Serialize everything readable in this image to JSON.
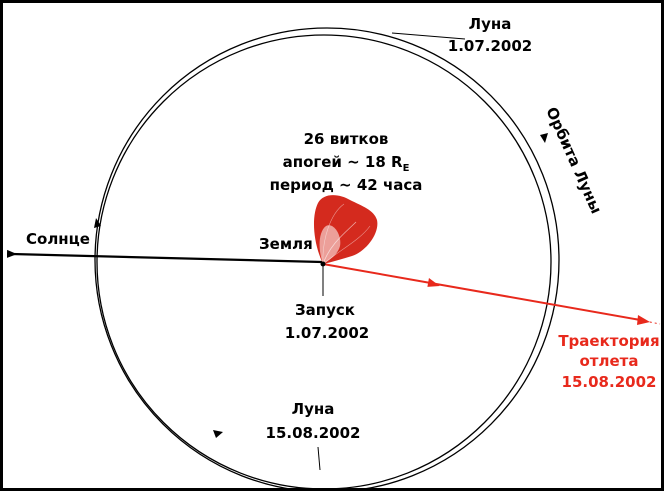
{
  "labels": {
    "moon_top_name": "Луна",
    "moon_top_date": "1.07.2002",
    "orbit_label": "Орбита Луны",
    "info_line1": "26 витков",
    "info_line2_prefix": "апогей ~ 18 R",
    "info_line2_sub": "E",
    "info_line3": "период ~ 42 часа",
    "sun": "Солнце",
    "earth": "Земля",
    "launch_name": "Запуск",
    "launch_date": "1.07.2002",
    "departure_line1": "Траектория",
    "departure_line2": "отлета",
    "departure_line3": "15.08.2002",
    "moon_bottom_name": "Луна",
    "moon_bottom_date": "15.08.2002"
  },
  "colors": {
    "background": "#ffffff",
    "frame": "#000000",
    "ink": "#000000",
    "trajectory": "#e8291c",
    "loops": "#d42a1e"
  }
}
